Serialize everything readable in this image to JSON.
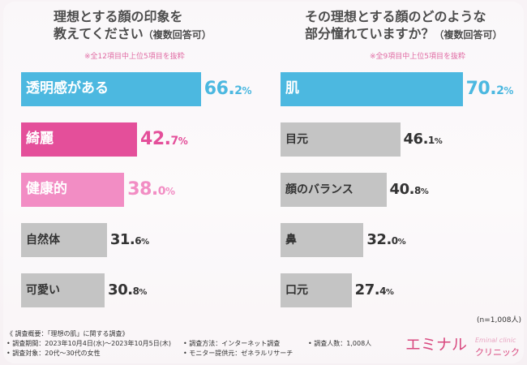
{
  "chart_data": [
    {
      "type": "bar",
      "orientation": "horizontal",
      "title_line1": "理想とする顔の印象を",
      "title_line2": "教えてください",
      "title_suffix": "（複数回答可）",
      "note": "※全12項目中上位5項目を抜粋",
      "categories": [
        "透明感がある",
        "綺麗",
        "健康的",
        "自然体",
        "可愛い"
      ],
      "values": [
        66.2,
        42.7,
        38.0,
        31.6,
        30.8
      ],
      "value_labels": [
        {
          "int": "66.",
          "dec": "2",
          "unit": "%"
        },
        {
          "int": "42.",
          "dec": "7",
          "unit": "%"
        },
        {
          "int": "38.",
          "dec": "0",
          "unit": "%"
        },
        {
          "int": "31.",
          "dec": "6",
          "unit": "%"
        },
        {
          "int": "30.",
          "dec": "8",
          "unit": "%"
        }
      ],
      "bar_colors": [
        "#4cb8e0",
        "#e44f9a",
        "#f28dc4",
        "#c4c4c4",
        "#c4c4c4"
      ],
      "label_colors": [
        "#ffffff",
        "#ffffff",
        "#ffffff",
        "#333333",
        "#333333"
      ],
      "value_colors": [
        "#4cb8e0",
        "#e44f9a",
        "#f28dc4",
        "#333333",
        "#333333"
      ],
      "unit": "%"
    },
    {
      "type": "bar",
      "orientation": "horizontal",
      "title_line1": "その理想とする顔のどのような",
      "title_line2": "部分憧れていますか？",
      "title_suffix": "（複数回答可）",
      "note": "※全9項目中上位5項目を抜粋",
      "categories": [
        "肌",
        "目元",
        "顔のバランス",
        "鼻",
        "口元"
      ],
      "values": [
        70.2,
        46.1,
        40.8,
        32.0,
        27.4
      ],
      "value_labels": [
        {
          "int": "70.",
          "dec": "2",
          "unit": "%"
        },
        {
          "int": "46.",
          "dec": "1",
          "unit": "%"
        },
        {
          "int": "40.",
          "dec": "8",
          "unit": "%"
        },
        {
          "int": "32.",
          "dec": "0",
          "unit": "%"
        },
        {
          "int": "27.",
          "dec": "4",
          "unit": "%"
        }
      ],
      "bar_colors": [
        "#4cb8e0",
        "#c4c4c4",
        "#c4c4c4",
        "#c4c4c4",
        "#c4c4c4"
      ],
      "label_colors": [
        "#ffffff",
        "#333333",
        "#333333",
        "#333333",
        "#333333"
      ],
      "value_colors": [
        "#4cb8e0",
        "#333333",
        "#333333",
        "#333333",
        "#333333"
      ],
      "unit": "%"
    }
  ],
  "sample_note": "(n=1,008人)",
  "survey": {
    "overview": "《 調査概要：「理想の肌」に関する調査》",
    "period": "• 調査期間：2023年10月4日(水)～2023年10月5日(木)",
    "target": "• 調査対象：20代～30代の女性",
    "method": "• 調査方法：インターネット調査",
    "provider": "• モニター提供元：ゼネラルリサーチ",
    "respondents": "• 調査人数：1,008人"
  },
  "brand": {
    "name": "エミナル",
    "sub": "クリニック",
    "en": "Eminal clinic",
    "color": "#d9497f"
  }
}
